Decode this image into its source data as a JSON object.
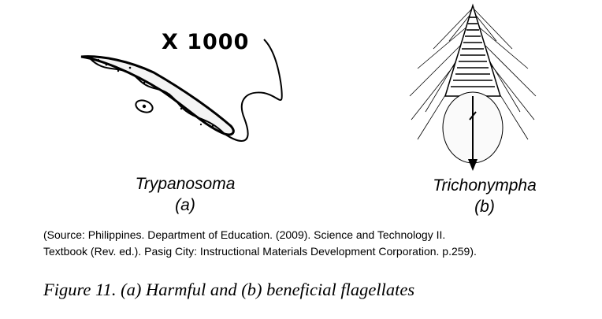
{
  "figure": {
    "magnification": "X 1000",
    "panel_a": {
      "organism": "Trypanosoma",
      "letter": "(a)"
    },
    "panel_b": {
      "organism": "Trichonympha",
      "letter": "(b)"
    },
    "source_line1": "(Source: Philippines. Department of Education. (2009). Science and Technology II.",
    "source_line2": "Textbook (Rev. ed.).  Pasig City: Instructional Materials Development Corporation. p.259).",
    "caption": "Figure 11. (a) Harmful and (b) beneficial flagellates"
  }
}
